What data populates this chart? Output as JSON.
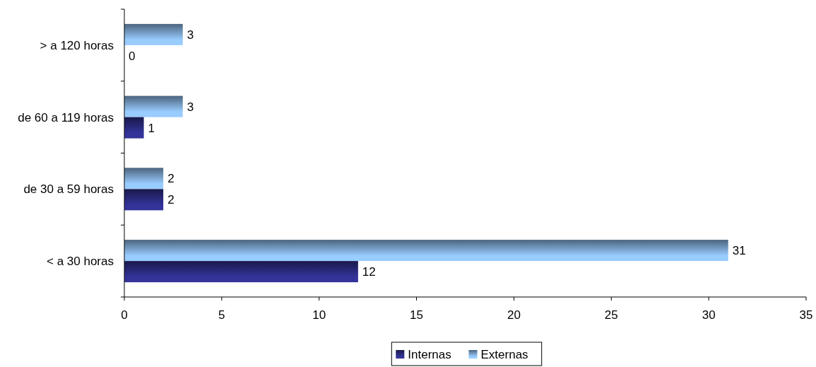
{
  "chart_data": {
    "type": "bar",
    "orientation": "horizontal",
    "categories": [
      "> a 120 horas",
      "de 60 a 119 horas",
      "de 30 a 59 horas",
      "< a 30 horas"
    ],
    "series": [
      {
        "name": "Externas",
        "color": "#99ccff",
        "values": [
          3,
          3,
          2,
          31
        ]
      },
      {
        "name": "Internas",
        "color": "#333399",
        "values": [
          0,
          1,
          2,
          12
        ]
      }
    ],
    "xlim": [
      0,
      35
    ],
    "xticks": [
      0,
      5,
      10,
      15,
      20,
      25,
      30,
      35
    ],
    "data_labels": true,
    "legend": "bottom",
    "grid": false
  }
}
